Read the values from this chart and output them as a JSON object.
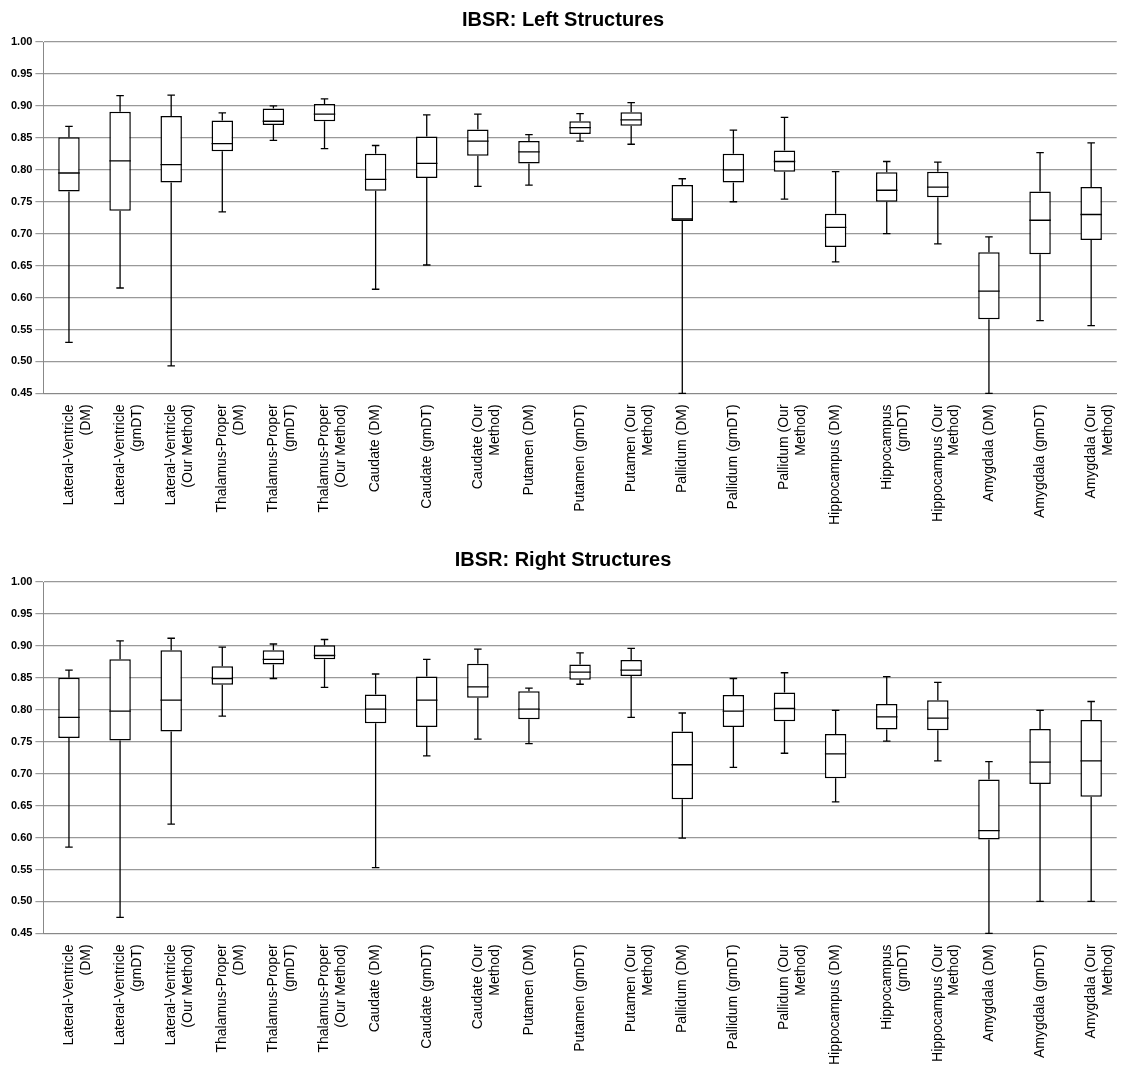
{
  "chart_data": [
    {
      "type": "box",
      "title": "IBSR: Left Structures",
      "categories": [
        "Lateral-Ventricle (DM)",
        "Lateral-Ventricle (gmDT)",
        "Lateral-Ventricle (Our Method)",
        "Thalamus-Proper (DM)",
        "Thalamus-Proper (gmDT)",
        "Thalamus-Proper (Our Method)",
        "Caudate (DM)",
        "Caudate (gmDT)",
        "Caudate (Our Method)",
        "Putamen (DM)",
        "Putamen (gmDT)",
        "Putamen (Our Method)",
        "Pallidum (DM)",
        "Pallidum (gmDT)",
        "Pallidum (Our Method)",
        "Hippocampus (DM)",
        "Hippocampus (gmDT)",
        "Hippocampus (Our Method)",
        "Amygdala (DM)",
        "Amygdala (gmDT)",
        "Amygdala (Our Method)"
      ],
      "boxes": [
        {
          "low": 0.53,
          "q1": 0.766,
          "median": 0.795,
          "q3": 0.851,
          "high": 0.868
        },
        {
          "low": 0.615,
          "q1": 0.736,
          "median": 0.814,
          "q3": 0.891,
          "high": 0.916
        },
        {
          "low": 0.493,
          "q1": 0.78,
          "median": 0.808,
          "q3": 0.884,
          "high": 0.917
        },
        {
          "low": 0.734,
          "q1": 0.829,
          "median": 0.841,
          "q3": 0.877,
          "high": 0.889
        },
        {
          "low": 0.846,
          "q1": 0.87,
          "median": 0.876,
          "q3": 0.896,
          "high": 0.9
        },
        {
          "low": 0.833,
          "q1": 0.876,
          "median": 0.887,
          "q3": 0.903,
          "high": 0.911
        },
        {
          "low": 0.613,
          "q1": 0.767,
          "median": 0.785,
          "q3": 0.825,
          "high": 0.838
        },
        {
          "low": 0.651,
          "q1": 0.787,
          "median": 0.81,
          "q3": 0.852,
          "high": 0.886
        },
        {
          "low": 0.774,
          "q1": 0.822,
          "median": 0.845,
          "q3": 0.863,
          "high": 0.887
        },
        {
          "low": 0.776,
          "q1": 0.81,
          "median": 0.828,
          "q3": 0.845,
          "high": 0.855
        },
        {
          "low": 0.845,
          "q1": 0.856,
          "median": 0.866,
          "q3": 0.876,
          "high": 0.888
        },
        {
          "low": 0.84,
          "q1": 0.869,
          "median": 0.878,
          "q3": 0.89,
          "high": 0.905
        },
        {
          "low": 0.45,
          "q1": 0.72,
          "median": 0.723,
          "q3": 0.776,
          "high": 0.786
        },
        {
          "low": 0.75,
          "q1": 0.78,
          "median": 0.8,
          "q3": 0.825,
          "high": 0.862
        },
        {
          "low": 0.754,
          "q1": 0.797,
          "median": 0.813,
          "q3": 0.83,
          "high": 0.882
        },
        {
          "low": 0.656,
          "q1": 0.679,
          "median": 0.71,
          "q3": 0.731,
          "high": 0.797
        },
        {
          "low": 0.7,
          "q1": 0.75,
          "median": 0.768,
          "q3": 0.796,
          "high": 0.813
        },
        {
          "low": 0.684,
          "q1": 0.757,
          "median": 0.773,
          "q3": 0.797,
          "high": 0.812
        },
        {
          "low": 0.45,
          "q1": 0.566,
          "median": 0.61,
          "q3": 0.671,
          "high": 0.695
        },
        {
          "low": 0.564,
          "q1": 0.668,
          "median": 0.721,
          "q3": 0.766,
          "high": 0.827
        },
        {
          "low": 0.556,
          "q1": 0.69,
          "median": 0.73,
          "q3": 0.773,
          "high": 0.842
        }
      ],
      "ylim": [
        0.45,
        1.0
      ],
      "yticks": [
        0.45,
        {
          "value": 0.5,
          "label": "0.50"
        },
        0.55,
        {
          "value": 0.6,
          "label": "0.60"
        },
        0.65,
        {
          "value": 0.7,
          "label": "0.70"
        },
        0.75,
        {
          "value": 0.8,
          "label": "0.80"
        },
        0.85,
        {
          "value": 0.9,
          "label": "0.90"
        },
        0.95,
        {
          "value": 1.0,
          "label": "1.00"
        }
      ],
      "grid": "y"
    },
    {
      "type": "box",
      "title": "IBSR: Right Structures",
      "categories": [
        "Lateral-Ventricle (DM)",
        "Lateral-Ventricle (gmDT)",
        "Lateral-Ventricle (Our Method)",
        "Thalamus-Proper (DM)",
        "Thalamus-Proper (gmDT)",
        "Thalamus-Proper (Our Method)",
        "Caudate (DM)",
        "Caudate (gmDT)",
        "Caudate (Our Method)",
        "Putamen (DM)",
        "Putamen (gmDT)",
        "Putamen (Our Method)",
        "Pallidum (DM)",
        "Pallidum (gmDT)",
        "Pallidum (Our Method)",
        "Hippocampus (DM)",
        "Hippocampus (gmDT)",
        "Hippocampus (Our Method)",
        "Amygdala (DM)",
        "Amygdala (gmDT)",
        "Amygdala (Our Method)"
      ],
      "boxes": [
        {
          "low": 0.585,
          "q1": 0.756,
          "median": 0.788,
          "q3": 0.85,
          "high": 0.862
        },
        {
          "low": 0.475,
          "q1": 0.752,
          "median": 0.798,
          "q3": 0.879,
          "high": 0.908
        },
        {
          "low": 0.621,
          "q1": 0.766,
          "median": 0.815,
          "q3": 0.893,
          "high": 0.912
        },
        {
          "low": 0.79,
          "q1": 0.839,
          "median": 0.849,
          "q3": 0.868,
          "high": 0.898
        },
        {
          "low": 0.849,
          "q1": 0.871,
          "median": 0.879,
          "q3": 0.893,
          "high": 0.903
        },
        {
          "low": 0.835,
          "q1": 0.879,
          "median": 0.885,
          "q3": 0.901,
          "high": 0.91
        },
        {
          "low": 0.553,
          "q1": 0.779,
          "median": 0.801,
          "q3": 0.824,
          "high": 0.856
        },
        {
          "low": 0.728,
          "q1": 0.773,
          "median": 0.815,
          "q3": 0.852,
          "high": 0.879
        },
        {
          "low": 0.754,
          "q1": 0.819,
          "median": 0.836,
          "q3": 0.872,
          "high": 0.895
        },
        {
          "low": 0.747,
          "q1": 0.785,
          "median": 0.801,
          "q3": 0.829,
          "high": 0.834
        },
        {
          "low": 0.84,
          "q1": 0.847,
          "median": 0.859,
          "q3": 0.871,
          "high": 0.889
        },
        {
          "low": 0.788,
          "q1": 0.853,
          "median": 0.862,
          "q3": 0.878,
          "high": 0.896
        },
        {
          "low": 0.599,
          "q1": 0.66,
          "median": 0.714,
          "q3": 0.766,
          "high": 0.795
        },
        {
          "low": 0.71,
          "q1": 0.773,
          "median": 0.798,
          "q3": 0.823,
          "high": 0.849
        },
        {
          "low": 0.732,
          "q1": 0.782,
          "median": 0.802,
          "q3": 0.827,
          "high": 0.858
        },
        {
          "low": 0.656,
          "q1": 0.693,
          "median": 0.731,
          "q3": 0.762,
          "high": 0.799
        },
        {
          "low": 0.751,
          "q1": 0.769,
          "median": 0.789,
          "q3": 0.809,
          "high": 0.852
        },
        {
          "low": 0.72,
          "q1": 0.768,
          "median": 0.787,
          "q3": 0.815,
          "high": 0.843
        },
        {
          "low": 0.45,
          "q1": 0.597,
          "median": 0.611,
          "q3": 0.691,
          "high": 0.719
        },
        {
          "low": 0.5,
          "q1": 0.684,
          "median": 0.718,
          "q3": 0.77,
          "high": 0.799
        },
        {
          "low": 0.5,
          "q1": 0.664,
          "median": 0.72,
          "q3": 0.784,
          "high": 0.813
        }
      ],
      "ylim": [
        0.45,
        1.0
      ],
      "yticks": [
        0.45,
        {
          "value": 0.5,
          "label": "0.50"
        },
        0.55,
        {
          "value": 0.6,
          "label": "0.60"
        },
        0.65,
        {
          "value": 0.7,
          "label": "0.70"
        },
        0.75,
        {
          "value": 0.8,
          "label": "0.80"
        },
        0.85,
        {
          "value": 0.9,
          "label": "0.90"
        },
        0.95,
        {
          "value": 1.0,
          "label": "1.00"
        }
      ],
      "grid": "y"
    }
  ]
}
